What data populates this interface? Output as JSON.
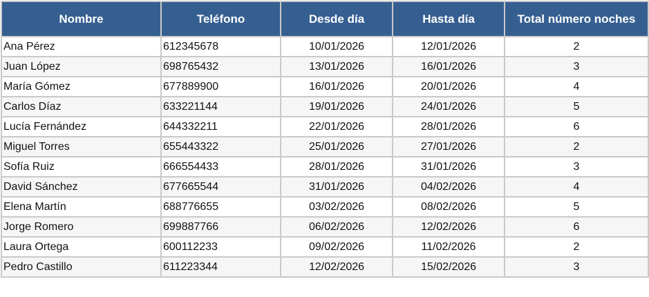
{
  "table": {
    "headers": [
      "Nombre",
      "Teléfono",
      "Desde día",
      "Hasta día",
      "Total número noches"
    ],
    "rows": [
      [
        "Ana Pérez",
        "612345678",
        "10/01/2026",
        "12/01/2026",
        "2"
      ],
      [
        "Juan López",
        "698765432",
        "13/01/2026",
        "16/01/2026",
        "3"
      ],
      [
        "María Gómez",
        "677889900",
        "16/01/2026",
        "20/01/2026",
        "4"
      ],
      [
        "Carlos Díaz",
        "633221144",
        "19/01/2026",
        "24/01/2026",
        "5"
      ],
      [
        "Lucía Fernández",
        "644332211",
        "22/01/2026",
        "28/01/2026",
        "6"
      ],
      [
        "Miguel Torres",
        "655443322",
        "25/01/2026",
        "27/01/2026",
        "2"
      ],
      [
        "Sofía Ruiz",
        "666554433",
        "28/01/2026",
        "31/01/2026",
        "3"
      ],
      [
        "David Sánchez",
        "677665544",
        "31/01/2026",
        "04/02/2026",
        "4"
      ],
      [
        "Elena Martín",
        "688776655",
        "03/02/2026",
        "08/02/2026",
        "5"
      ],
      [
        "Jorge Romero",
        "699887766",
        "06/02/2026",
        "12/02/2026",
        "6"
      ],
      [
        "Laura Ortega",
        "600112233",
        "09/02/2026",
        "11/02/2026",
        "2"
      ],
      [
        "Pedro Castillo",
        "611223344",
        "12/02/2026",
        "15/02/2026",
        "3"
      ]
    ]
  },
  "colors": {
    "header_bg": "#365f91",
    "header_text": "#ffffff",
    "alt_row": "#f6f6f6",
    "grid": "#c9c9c9"
  }
}
